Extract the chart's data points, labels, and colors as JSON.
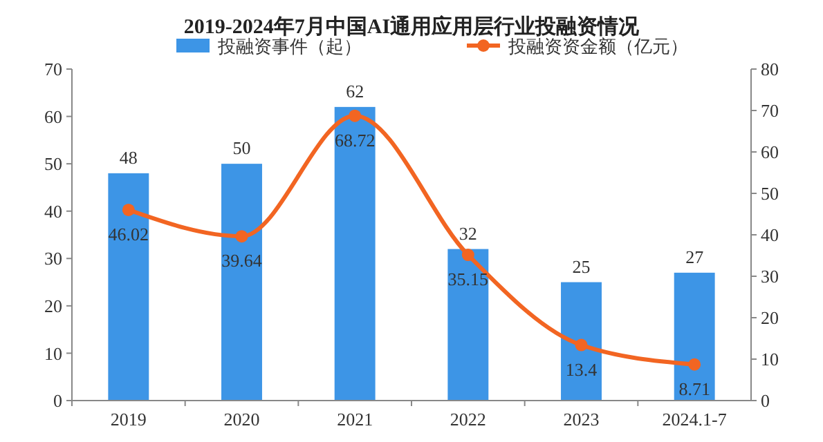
{
  "chart_data": {
    "type": "bar",
    "title": "2019-2024年7月中国AI通用应用层行业投融资情况",
    "categories": [
      "2019",
      "2020",
      "2021",
      "2022",
      "2023",
      "2024.1-7"
    ],
    "series": [
      {
        "name": "投融资事件（起）",
        "color": "#3d95e6",
        "values": [
          48,
          50,
          62,
          32,
          25,
          27
        ]
      },
      {
        "name": "投融资资金额（亿元）",
        "type": "line",
        "axis": "y2",
        "color": "#f26522",
        "marker": "circle",
        "values": [
          46.02,
          39.64,
          68.72,
          35.15,
          13.4,
          8.71
        ]
      }
    ],
    "ylim": [
      0,
      70
    ],
    "yticks": [
      0,
      10,
      20,
      30,
      40,
      50,
      60,
      70
    ],
    "y2lim": [
      0,
      80
    ],
    "y2ticks": [
      0,
      10,
      20,
      30,
      40,
      50,
      60,
      70,
      80
    ],
    "data_labels": true,
    "legend": "top",
    "grid": false
  }
}
